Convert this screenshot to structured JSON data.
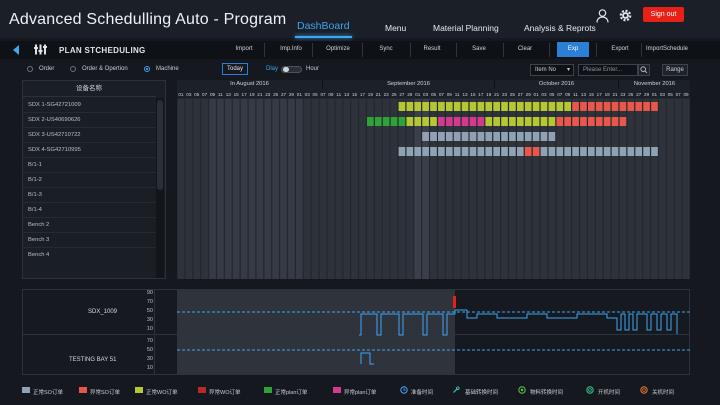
{
  "header": {
    "title": "Advanced  Schedulling  Auto - Program",
    "nav": [
      "DashBoard",
      "Menu",
      "Material Planning",
      "Analysis & Reprots"
    ],
    "sign_out": "Sign out"
  },
  "toolbar": {
    "title": "PLAN  STCHEDULING",
    "buttons": [
      "Import",
      "Imp.Info",
      "Optimize",
      "Sync",
      "Result",
      "Save",
      "Clear",
      "Exp",
      "Export",
      "ImportSchedule"
    ]
  },
  "filters": {
    "radios": [
      "Order",
      "Order & Opertion",
      "Machine"
    ],
    "selected": "Machine",
    "today": "Today",
    "day_label": "Dlay",
    "hour_label": "Hour",
    "item_select": "Item No",
    "search_placeholder": "Please Enter...",
    "range_button": "Range"
  },
  "machines": {
    "header": "设备名称",
    "rows": [
      "SDX 1-SG42721009",
      "SDX 2-US40690626",
      "SDX 3-US42710722",
      "SDX 4-SG42710995",
      "B/1-1",
      "B/1-2",
      "B/1-3",
      "B/1-4",
      "Bench 2",
      "Bench 3",
      "Bench 4"
    ]
  },
  "timeline": {
    "months": [
      "In August 2016",
      "September 2016",
      "October 2016",
      "November 2016"
    ],
    "days": [
      "01",
      "03",
      "05",
      "07",
      "09",
      "11",
      "13",
      "15",
      "17",
      "19",
      "21",
      "23",
      "25",
      "27",
      "29",
      "01",
      "03",
      "05",
      "07",
      "09",
      "11",
      "13",
      "15",
      "17",
      "19",
      "21",
      "23",
      "25",
      "27",
      "29",
      "01",
      "03",
      "05",
      "07",
      "09",
      "11",
      "13",
      "15",
      "17",
      "19",
      "21",
      "23",
      "25",
      "27",
      "29",
      "01",
      "03",
      "05",
      "07",
      "09",
      "11",
      "13",
      "15",
      "17",
      "19",
      "21",
      "23",
      "25",
      "27",
      "29",
      "01",
      "03",
      "05",
      "07",
      "09"
    ],
    "colors": {
      "normal_so": "#8fa1b3",
      "abnormal_so": "#e8574a",
      "normal_wo": "#b5c832",
      "abnormal_wo": "#b42b25",
      "normal_plan": "#2fa33a",
      "abnormal_plan": "#d23a8e"
    },
    "bars": [
      {
        "row": 0,
        "start": 28,
        "end": 31,
        "color": "normal_wo"
      },
      {
        "row": 0,
        "start": 32,
        "end": 49,
        "color": "normal_wo"
      },
      {
        "row": 0,
        "start": 50,
        "end": 60,
        "color": "abnormal_so"
      },
      {
        "row": 1,
        "start": 24,
        "end": 28,
        "color": "normal_plan"
      },
      {
        "row": 1,
        "start": 29,
        "end": 32,
        "color": "normal_wo"
      },
      {
        "row": 1,
        "start": 33,
        "end": 38,
        "color": "abnormal_plan"
      },
      {
        "row": 1,
        "start": 39,
        "end": 47,
        "color": "normal_wo"
      },
      {
        "row": 1,
        "start": 48,
        "end": 56,
        "color": "abnormal_so"
      },
      {
        "row": 2,
        "start": 31,
        "end": 47,
        "color": "abnormal_plan"
      },
      {
        "row": 2,
        "start": 31,
        "end": 47,
        "color": "normal_so"
      },
      {
        "row": 3,
        "start": 28,
        "end": 60,
        "color": "normal_so"
      }
    ]
  },
  "load_charts": [
    {
      "name": "SDX_1009",
      "yticks": [
        "90",
        "70",
        "50",
        "30",
        "10"
      ]
    },
    {
      "name": "TESTING BAY 51",
      "yticks": [
        "70",
        "50",
        "30",
        "10"
      ]
    }
  ],
  "legend": [
    {
      "label": "正常SO订单",
      "color": "#8fa1b3"
    },
    {
      "label": "异常SO订单",
      "color": "#e8574a"
    },
    {
      "label": "正常WO订单",
      "color": "#b5c832"
    },
    {
      "label": "异常WO订单",
      "color": "#b42b25"
    },
    {
      "label": "正常plan订单",
      "color": "#2fa33a"
    },
    {
      "label": "异常plan订单",
      "color": "#d23a8e"
    },
    {
      "label": "准备时间",
      "icon": "clock-icon"
    },
    {
      "label": "基础转换时间",
      "icon": "wrench-icon"
    },
    {
      "label": "物料转换时间",
      "icon": "material-icon"
    },
    {
      "label": "开机时间",
      "icon": "power-on-icon"
    },
    {
      "label": "关机时间",
      "icon": "power-off-icon"
    }
  ]
}
